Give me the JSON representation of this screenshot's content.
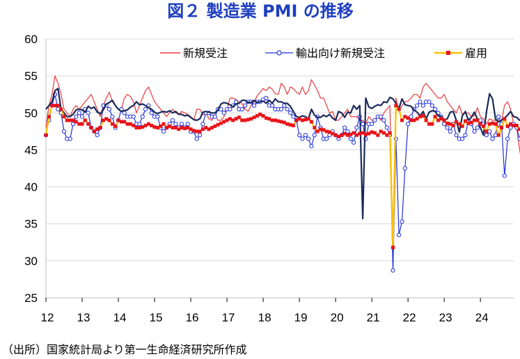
{
  "chart_data": {
    "type": "line",
    "title": "図２ 製造業 PMI の推移",
    "source": "（出所）国家統計局より第一生命経済研究所作成",
    "ylim": [
      25,
      60
    ],
    "yticks": [
      25,
      30,
      35,
      40,
      45,
      50,
      55,
      60
    ],
    "xlim": [
      2012,
      2024.92
    ],
    "year_labels": [
      "12",
      "13",
      "14",
      "15",
      "16",
      "17",
      "18",
      "19",
      "20",
      "21",
      "22",
      "23",
      "24"
    ],
    "legend_position": "top-right",
    "series": [
      {
        "name": "新規受注",
        "color": "#e8383d",
        "values": [
          48.0,
          51.0,
          52.5,
          55.0,
          54.0,
          52.5,
          50.5,
          50.0,
          49.5,
          50.5,
          51.0,
          50.5,
          51.0,
          51.5,
          52.0,
          52.5,
          51.5,
          50.5,
          49.5,
          51.0,
          52.0,
          52.8,
          51.5,
          51.0,
          50.5,
          50.5,
          52.0,
          52.5,
          52.2,
          51.5,
          50.0,
          51.0,
          52.0,
          53.0,
          53.5,
          52.5,
          51.5,
          51.0,
          50.5,
          50.0,
          49.5,
          50.0,
          50.5,
          50.0,
          49.8,
          50.2,
          50.0,
          49.8,
          49.5,
          49.0,
          50.5,
          50.5,
          49.7,
          50.0,
          49.2,
          49.0,
          49.7,
          49.0,
          49.0,
          49.5,
          50.5,
          52.0,
          52.0,
          51.8,
          51.5,
          51.3,
          50.5,
          50.2,
          51.0,
          51.5,
          52.3,
          52.8,
          53.3,
          53.0,
          53.5,
          53.2,
          52.6,
          52.5,
          54.0,
          53.5,
          52.5,
          53.5,
          53.3,
          52.8,
          52.5,
          53.5,
          52.5,
          53.0,
          54.5,
          53.8,
          53.0,
          52.0,
          52.0,
          51.0,
          50.0,
          50.2,
          49.0,
          49.0,
          49.5,
          50.0,
          50.5,
          49.5,
          49.5,
          49.5,
          49.0,
          49.0,
          48.5,
          49.5,
          49.0,
          49.0,
          49.5,
          49.0,
          50.0,
          50.5,
          51.0,
          29.3,
          52.0,
          50.2,
          51.0,
          51.5,
          51.6,
          52.0,
          52.5,
          52.5,
          52.0,
          53.5,
          54.0,
          53.5,
          53.0,
          52.5,
          52.0,
          52.0,
          52.5,
          51.5,
          51.0,
          50.5,
          50.0,
          51.0,
          49.8,
          50.0,
          50.0,
          49.5,
          49.6,
          50.7,
          49.5,
          49.2,
          48.5,
          49.2,
          49.0,
          49.0,
          48.0,
          49.0,
          51.0,
          51.5,
          50.5,
          48.5,
          48.0,
          45.0,
          42.5,
          48.5,
          49.5,
          50.5,
          49.0,
          48.5,
          49.0,
          50.0,
          48.0,
          47.5,
          47.0,
          46.0,
          51.0,
          54.0,
          53.5,
          49.0,
          48.5,
          48.5,
          49.0,
          49.5,
          50.0,
          50.5,
          49.5,
          49.5,
          49.5,
          50.0,
          49.0,
          49.0,
          49.0,
          48.5,
          48.0,
          49.0,
          53.0,
          50.5,
          50.0,
          49.0,
          49.0,
          49.0,
          50.0,
          50.5,
          50.8,
          51.0
        ]
      },
      {
        "name": "輸出向け新規受注",
        "color": "#1f2fdb",
        "values": [
          47.0,
          49.0,
          51.0,
          52.5,
          50.5,
          50.0,
          47.5,
          46.5,
          46.5,
          48.5,
          49.5,
          50.0,
          49.5,
          50.5,
          50.0,
          48.0,
          47.5,
          47.0,
          48.0,
          51.0,
          51.0,
          50.5,
          49.5,
          48.0,
          49.0,
          50.5,
          50.0,
          49.5,
          49.5,
          49.5,
          48.5,
          48.5,
          49.5,
          50.5,
          51.0,
          50.0,
          49.5,
          49.5,
          48.0,
          47.5,
          48.0,
          48.5,
          49.0,
          48.5,
          48.0,
          48.5,
          48.0,
          48.5,
          47.5,
          47.5,
          46.5,
          47.0,
          48.5,
          50.0,
          50.0,
          49.5,
          49.5,
          50.5,
          50.5,
          50.0,
          50.5,
          50.5,
          51.0,
          51.5,
          50.5,
          50.5,
          51.0,
          51.5,
          51.5,
          51.0,
          51.5,
          51.5,
          51.8,
          52.0,
          51.0,
          51.0,
          50.5,
          50.5,
          50.5,
          51.0,
          50.5,
          50.0,
          49.5,
          49.0,
          47.0,
          46.5,
          47.0,
          46.5,
          45.5,
          47.0,
          49.5,
          48.0,
          46.5,
          46.5,
          47.0,
          47.5,
          47.0,
          46.5,
          47.0,
          48.0,
          47.5,
          46.5,
          46.0,
          48.0,
          49.5,
          48.5,
          46.5,
          48.5,
          48.5,
          49.0,
          49.5,
          49.5,
          49.0,
          48.0,
          47.0,
          28.7,
          46.5,
          33.5,
          35.3,
          42.5,
          48.5,
          49.5,
          50.5,
          51.0,
          51.5,
          51.0,
          51.5,
          51.5,
          51.0,
          50.5,
          50.0,
          49.5,
          48.5,
          48.0,
          47.5,
          48.5,
          47.0,
          46.5,
          46.5,
          47.0,
          49.0,
          48.5,
          47.5,
          48.0,
          49.0,
          48.5,
          47.0,
          47.5,
          46.5,
          47.0,
          49.5,
          48.5,
          41.5,
          46.5,
          48.0,
          48.5,
          48.0,
          46.5,
          47.5,
          47.5,
          47.0,
          46.5,
          46.0,
          44.5,
          46.0,
          52.5,
          50.5,
          47.5,
          47.0,
          46.5,
          46.5,
          46.0,
          47.0,
          47.5,
          48.5,
          48.0,
          46.5,
          47.0,
          46.0,
          46.5,
          47.5,
          48.5,
          48.5,
          46.5,
          51.0,
          50.0,
          49.0,
          48.0,
          48.0,
          47.5,
          47.5,
          48.5,
          48.0,
          48.5
        ]
      },
      {
        "name": "",
        "color": "#1a2a5a",
        "values": [
          50.5,
          51.0,
          51.5,
          53.0,
          53.3,
          50.5,
          50.0,
          49.5,
          49.5,
          49.8,
          50.4,
          50.5,
          50.4,
          50.1,
          50.9,
          50.6,
          50.8,
          50.1,
          49.9,
          50.4,
          51.2,
          51.4,
          51.7,
          51.0,
          50.5,
          50.2,
          50.3,
          50.4,
          50.8,
          51.0,
          51.5,
          51.1,
          51.2,
          51.0,
          50.7,
          50.5,
          50.1,
          49.9,
          50.1,
          50.2,
          50.1,
          50.3,
          50.0,
          50.2,
          49.8,
          49.8,
          49.6,
          49.7,
          49.4,
          49.1,
          49.0,
          49.2,
          50.1,
          50.2,
          50.1,
          50.0,
          50.0,
          50.4,
          51.2,
          51.4,
          51.3,
          51.1,
          50.8,
          51.2,
          51.3,
          51.7,
          51.7,
          51.4,
          51.4,
          51.7,
          51.4,
          51.5,
          51.6,
          51.3,
          51.7,
          51.3,
          51.9,
          51.5,
          51.5,
          51.3,
          51.3,
          50.9,
          50.2,
          49.5,
          49.4,
          49.6,
          49.5,
          49.2,
          50.5,
          49.7,
          49.4,
          49.4,
          49.7,
          49.5,
          49.8,
          49.3,
          49.0,
          50.2,
          50.0,
          49.4,
          50.1,
          50.0,
          51.0,
          50.5,
          51.0,
          35.7,
          52.0,
          50.8,
          50.6,
          50.9,
          51.1,
          51.0,
          51.5,
          51.4,
          52.1,
          51.9,
          51.3,
          50.6,
          51.9,
          51.1,
          51.0,
          50.9,
          50.4,
          50.1,
          49.6,
          50.2,
          49.2,
          50.1,
          50.3,
          50.2,
          49.6,
          49.5,
          49.1,
          49.2,
          50.1,
          50.2,
          49.0,
          47.4,
          49.6,
          50.2,
          49.0,
          49.4,
          50.1,
          49.2,
          48.0,
          47.0,
          50.1,
          52.6,
          51.9,
          49.2,
          48.8,
          49.0,
          49.3,
          49.7,
          50.2,
          49.5,
          49.4,
          49.0,
          49.2,
          49.1,
          49.5,
          50.8,
          50.3,
          49.5,
          49.4,
          49.7,
          49.5,
          49.4,
          49.1,
          49.8,
          49.5,
          49.1,
          50.0,
          50.2,
          50.4,
          50.1
        ]
      },
      {
        "name": "雇用",
        "color": "#ffc000",
        "marker_color": "#e8141a",
        "values": [
          47.0,
          49.5,
          51.0,
          51.0,
          51.0,
          50.5,
          49.5,
          49.0,
          49.0,
          49.0,
          48.8,
          48.5,
          48.5,
          49.0,
          48.5,
          48.0,
          47.5,
          47.8,
          48.0,
          49.0,
          49.2,
          49.0,
          48.5,
          48.2,
          49.0,
          48.8,
          48.8,
          48.5,
          48.5,
          48.3,
          48.0,
          48.0,
          48.1,
          48.3,
          48.5,
          48.3,
          48.1,
          48.0,
          48.2,
          48.5,
          48.0,
          48.2,
          48.0,
          48.0,
          47.8,
          48.0,
          47.9,
          48.0,
          47.8,
          47.6,
          47.5,
          47.5,
          47.8,
          48.0,
          47.8,
          48.0,
          48.2,
          48.4,
          48.6,
          48.8,
          49.0,
          49.2,
          49.0,
          49.2,
          49.4,
          49.0,
          49.0,
          49.1,
          49.2,
          49.4,
          49.6,
          49.8,
          49.6,
          49.3,
          49.2,
          49.0,
          49.0,
          48.9,
          48.8,
          48.7,
          48.5,
          48.4,
          48.3,
          49.0,
          49.2,
          49.0,
          49.1,
          49.2,
          48.8,
          48.0,
          47.5,
          47.8,
          47.7,
          47.5,
          47.4,
          47.2,
          47.0,
          46.8,
          47.0,
          47.2,
          47.0,
          47.1,
          47.3,
          47.0,
          47.2,
          47.3,
          47.1,
          47.2,
          47.4,
          47.3,
          47.0,
          47.5,
          47.3,
          47.0,
          47.3,
          31.8,
          51.0,
          50.5,
          49.0,
          49.5,
          49.3,
          49.0,
          49.0,
          49.2,
          49.5,
          49.6,
          49.0,
          48.5,
          48.5,
          49.5,
          49.0,
          49.2,
          49.0,
          48.6,
          48.5,
          48.3,
          48.8,
          48.5,
          48.2,
          48.9,
          48.6,
          48.7,
          49.0,
          49.0,
          48.5,
          48.2,
          47.5,
          48.5,
          48.6,
          48.5,
          47.0,
          48.0,
          49.2,
          48.2,
          48.5,
          48.3,
          48.3,
          47.8,
          48.0,
          48.3,
          47.8,
          47.5,
          44.5,
          46.0,
          50.2,
          49.5,
          48.0,
          48.2,
          48.0,
          48.0,
          48.0,
          48.1,
          48.2,
          48.0,
          48.0,
          48.1,
          48.0,
          47.8,
          47.5,
          48.0,
          48.1,
          48.1,
          48.1,
          48.3,
          48.3,
          48.0,
          48.2,
          48.2,
          48.3,
          48.1,
          48.2,
          48.1
        ]
      }
    ]
  }
}
